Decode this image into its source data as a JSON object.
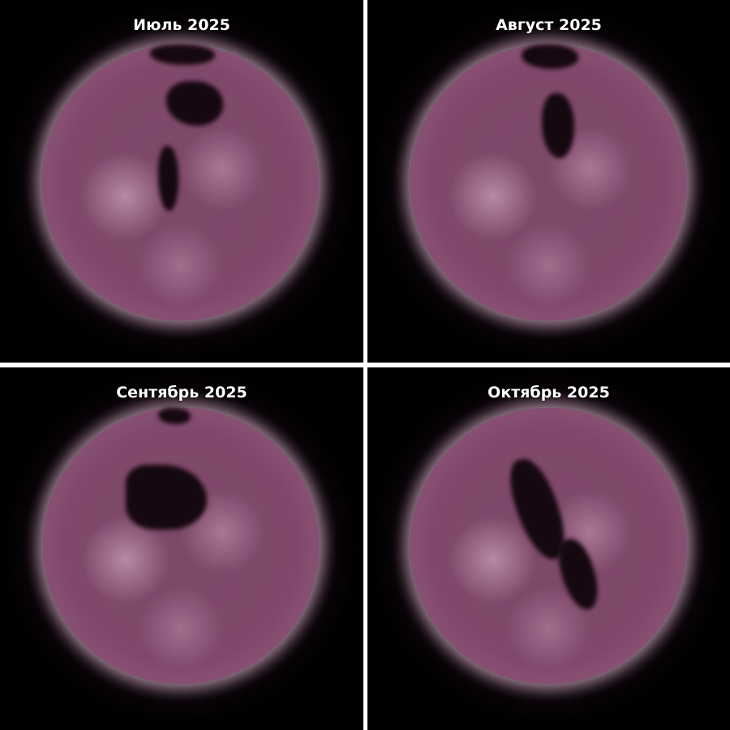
{
  "panels": [
    {
      "label": "Июль 2025"
    },
    {
      "label": "Август 2025"
    },
    {
      "label": "Сентябрь 2025"
    },
    {
      "label": "Октябрь 2025"
    }
  ],
  "colors": {
    "divider": "#ffffff",
    "background": "#000000",
    "disk": "#80496b",
    "limb": "#f0d8e6"
  }
}
